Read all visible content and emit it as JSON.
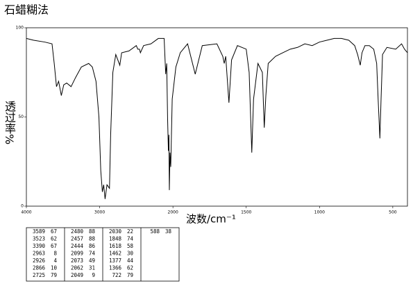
{
  "chart_data": {
    "type": "line",
    "title": "石蜡糊法",
    "y_label": "透过率%",
    "x_label": "波数/cm⁻¹",
    "xlim": [
      4000,
      400
    ],
    "xticks": [
      4000,
      3000,
      2000,
      1500,
      1000,
      500
    ],
    "ylim": [
      0,
      100
    ],
    "yticks": [
      0,
      50,
      100
    ],
    "series": [
      {
        "name": "spectrum",
        "color": "#000000",
        "x": [
          4000,
          3900,
          3750,
          3650,
          3620,
          3589,
          3560,
          3523,
          3490,
          3450,
          3390,
          3330,
          3250,
          3150,
          3100,
          3050,
          3010,
          2985,
          2963,
          2945,
          2926,
          2900,
          2866,
          2850,
          2820,
          2780,
          2725,
          2700,
          2600,
          2500,
          2480,
          2457,
          2444,
          2400,
          2300,
          2200,
          2120,
          2099,
          2085,
          2073,
          2062,
          2055,
          2049,
          2040,
          2030,
          2010,
          1980,
          1950,
          1900,
          1848,
          1800,
          1700,
          1660,
          1650,
          1640,
          1618,
          1600,
          1560,
          1500,
          1480,
          1462,
          1450,
          1420,
          1390,
          1377,
          1366,
          1350,
          1300,
          1250,
          1200,
          1150,
          1100,
          1050,
          1000,
          950,
          900,
          850,
          800,
          760,
          740,
          722,
          710,
          690,
          660,
          630,
          610,
          600,
          588,
          580,
          570,
          540,
          480,
          440,
          420,
          400
        ],
        "values": [
          94,
          93,
          92,
          91,
          80,
          67,
          70,
          62,
          68,
          69,
          67,
          72,
          78,
          80,
          78,
          70,
          50,
          20,
          8,
          12,
          4,
          12,
          10,
          40,
          75,
          85,
          79,
          86,
          87,
          90,
          88,
          88,
          86,
          90,
          91,
          94,
          94,
          74,
          80,
          49,
          31,
          40,
          9,
          30,
          22,
          60,
          78,
          86,
          91,
          74,
          90,
          91,
          84,
          80,
          84,
          58,
          82,
          90,
          88,
          75,
          30,
          60,
          80,
          75,
          44,
          62,
          80,
          84,
          86,
          88,
          89,
          91,
          90,
          92,
          93,
          94,
          94,
          93,
          90,
          85,
          79,
          86,
          90,
          90,
          88,
          80,
          60,
          38,
          60,
          85,
          89,
          88,
          91,
          88,
          86
        ]
      }
    ],
    "peak_table": [
      [
        3589,
        67
      ],
      [
        3523,
        62
      ],
      [
        3390,
        67
      ],
      [
        2963,
        8
      ],
      [
        2926,
        4
      ],
      [
        2866,
        10
      ],
      [
        2725,
        79
      ],
      [
        2480,
        88
      ],
      [
        2457,
        88
      ],
      [
        2444,
        86
      ],
      [
        2099,
        74
      ],
      [
        2073,
        49
      ],
      [
        2062,
        31
      ],
      [
        2049,
        9
      ],
      [
        2030,
        22
      ],
      [
        1848,
        74
      ],
      [
        1618,
        58
      ],
      [
        1462,
        30
      ],
      [
        1377,
        44
      ],
      [
        1366,
        62
      ],
      [
        722,
        79
      ],
      [
        588,
        38
      ]
    ]
  }
}
